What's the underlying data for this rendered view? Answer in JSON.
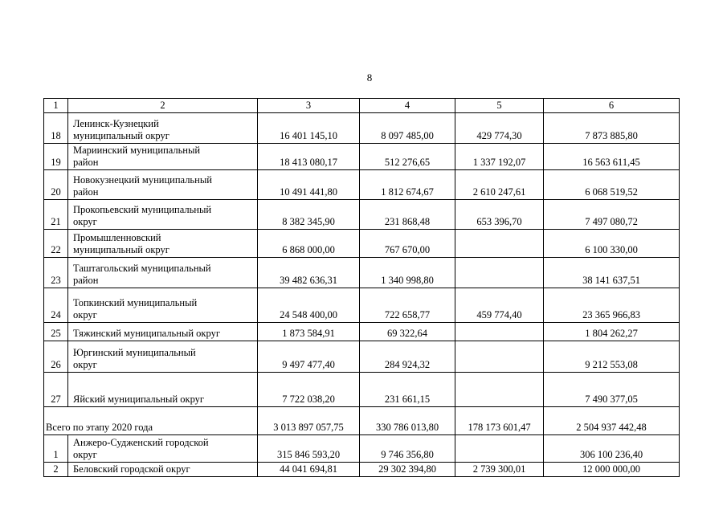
{
  "page_number": "8",
  "header": [
    "1",
    "2",
    "3",
    "4",
    "5",
    "6"
  ],
  "rows": [
    {
      "num": "18",
      "name": [
        "Ленинск-Кузнецкий",
        "муниципальный округ"
      ],
      "c3": "16 401 145,10",
      "c4": "8 097 485,00",
      "c5": "429 774,30",
      "c6": "7 873 885,80"
    },
    {
      "num": "19",
      "name": [
        "Мариинский муниципальный",
        "район"
      ],
      "c3": "18 413 080,17",
      "c4": "512 276,65",
      "c5": "1 337 192,07",
      "c6": "16 563 611,45"
    },
    {
      "num": "20",
      "name": [
        "Новокузнецкий муниципальный",
        "район"
      ],
      "c3": "10 491 441,80",
      "c4": "1 812 674,67",
      "c5": "2 610 247,61",
      "c6": "6 068 519,52"
    },
    {
      "num": "21",
      "name": [
        "Прокопьевский муниципальный",
        "округ"
      ],
      "c3": "8 382 345,90",
      "c4": "231 868,48",
      "c5": "653 396,70",
      "c6": "7 497 080,72"
    },
    {
      "num": "22",
      "name": [
        "Промышленновский",
        "муниципальный округ"
      ],
      "c3": "6 868 000,00",
      "c4": "767 670,00",
      "c5": "",
      "c6": "6 100 330,00"
    },
    {
      "num": "23",
      "name": [
        "Таштагольский муниципальный",
        "район"
      ],
      "c3": "39 482 636,31",
      "c4": "1 340 998,80",
      "c5": "",
      "c6": "38 141 637,51"
    },
    {
      "num": "24",
      "name": [
        "Топкинский муниципальный",
        "округ"
      ],
      "c3": "24 548 400,00",
      "c4": "722 658,77",
      "c5": "459 774,40",
      "c6": "23 365 966,83"
    },
    {
      "num": "25",
      "name": [
        "Тяжинский муниципальный округ",
        ""
      ],
      "c3": "1 873 584,91",
      "c4": "69 322,64",
      "c5": "",
      "c6": "1 804 262,27"
    },
    {
      "num": "26",
      "name": [
        "Юргинский муниципальный",
        "округ"
      ],
      "c3": "9 497 477,40",
      "c4": "284 924,32",
      "c5": "",
      "c6": "9 212 553,08"
    },
    {
      "num": "27",
      "name": [
        "Яйский муниципальный округ",
        ""
      ],
      "c3": "7 722 038,20",
      "c4": "231 661,15",
      "c5": "",
      "c6": "7 490 377,05"
    }
  ],
  "total": {
    "label": "Всего по этапу 2020 года",
    "c3": "3 013 897 057,75",
    "c4": "330 786 013,80",
    "c5": "178 173 601,47",
    "c6": "2 504 937 442,48"
  },
  "rows2": [
    {
      "num": "1",
      "name": [
        "Анжеро-Судженский городской",
        "округ"
      ],
      "c3": "315 846 593,20",
      "c4": "9 746 356,80",
      "c5": "",
      "c6": "306 100 236,40"
    },
    {
      "num": "2",
      "name": [
        "Беловский городской округ",
        ""
      ],
      "c3": "44 041 694,81",
      "c4": "29 302 394,80",
      "c5": "2 739 300,01",
      "c6": "12 000 000,00"
    }
  ]
}
